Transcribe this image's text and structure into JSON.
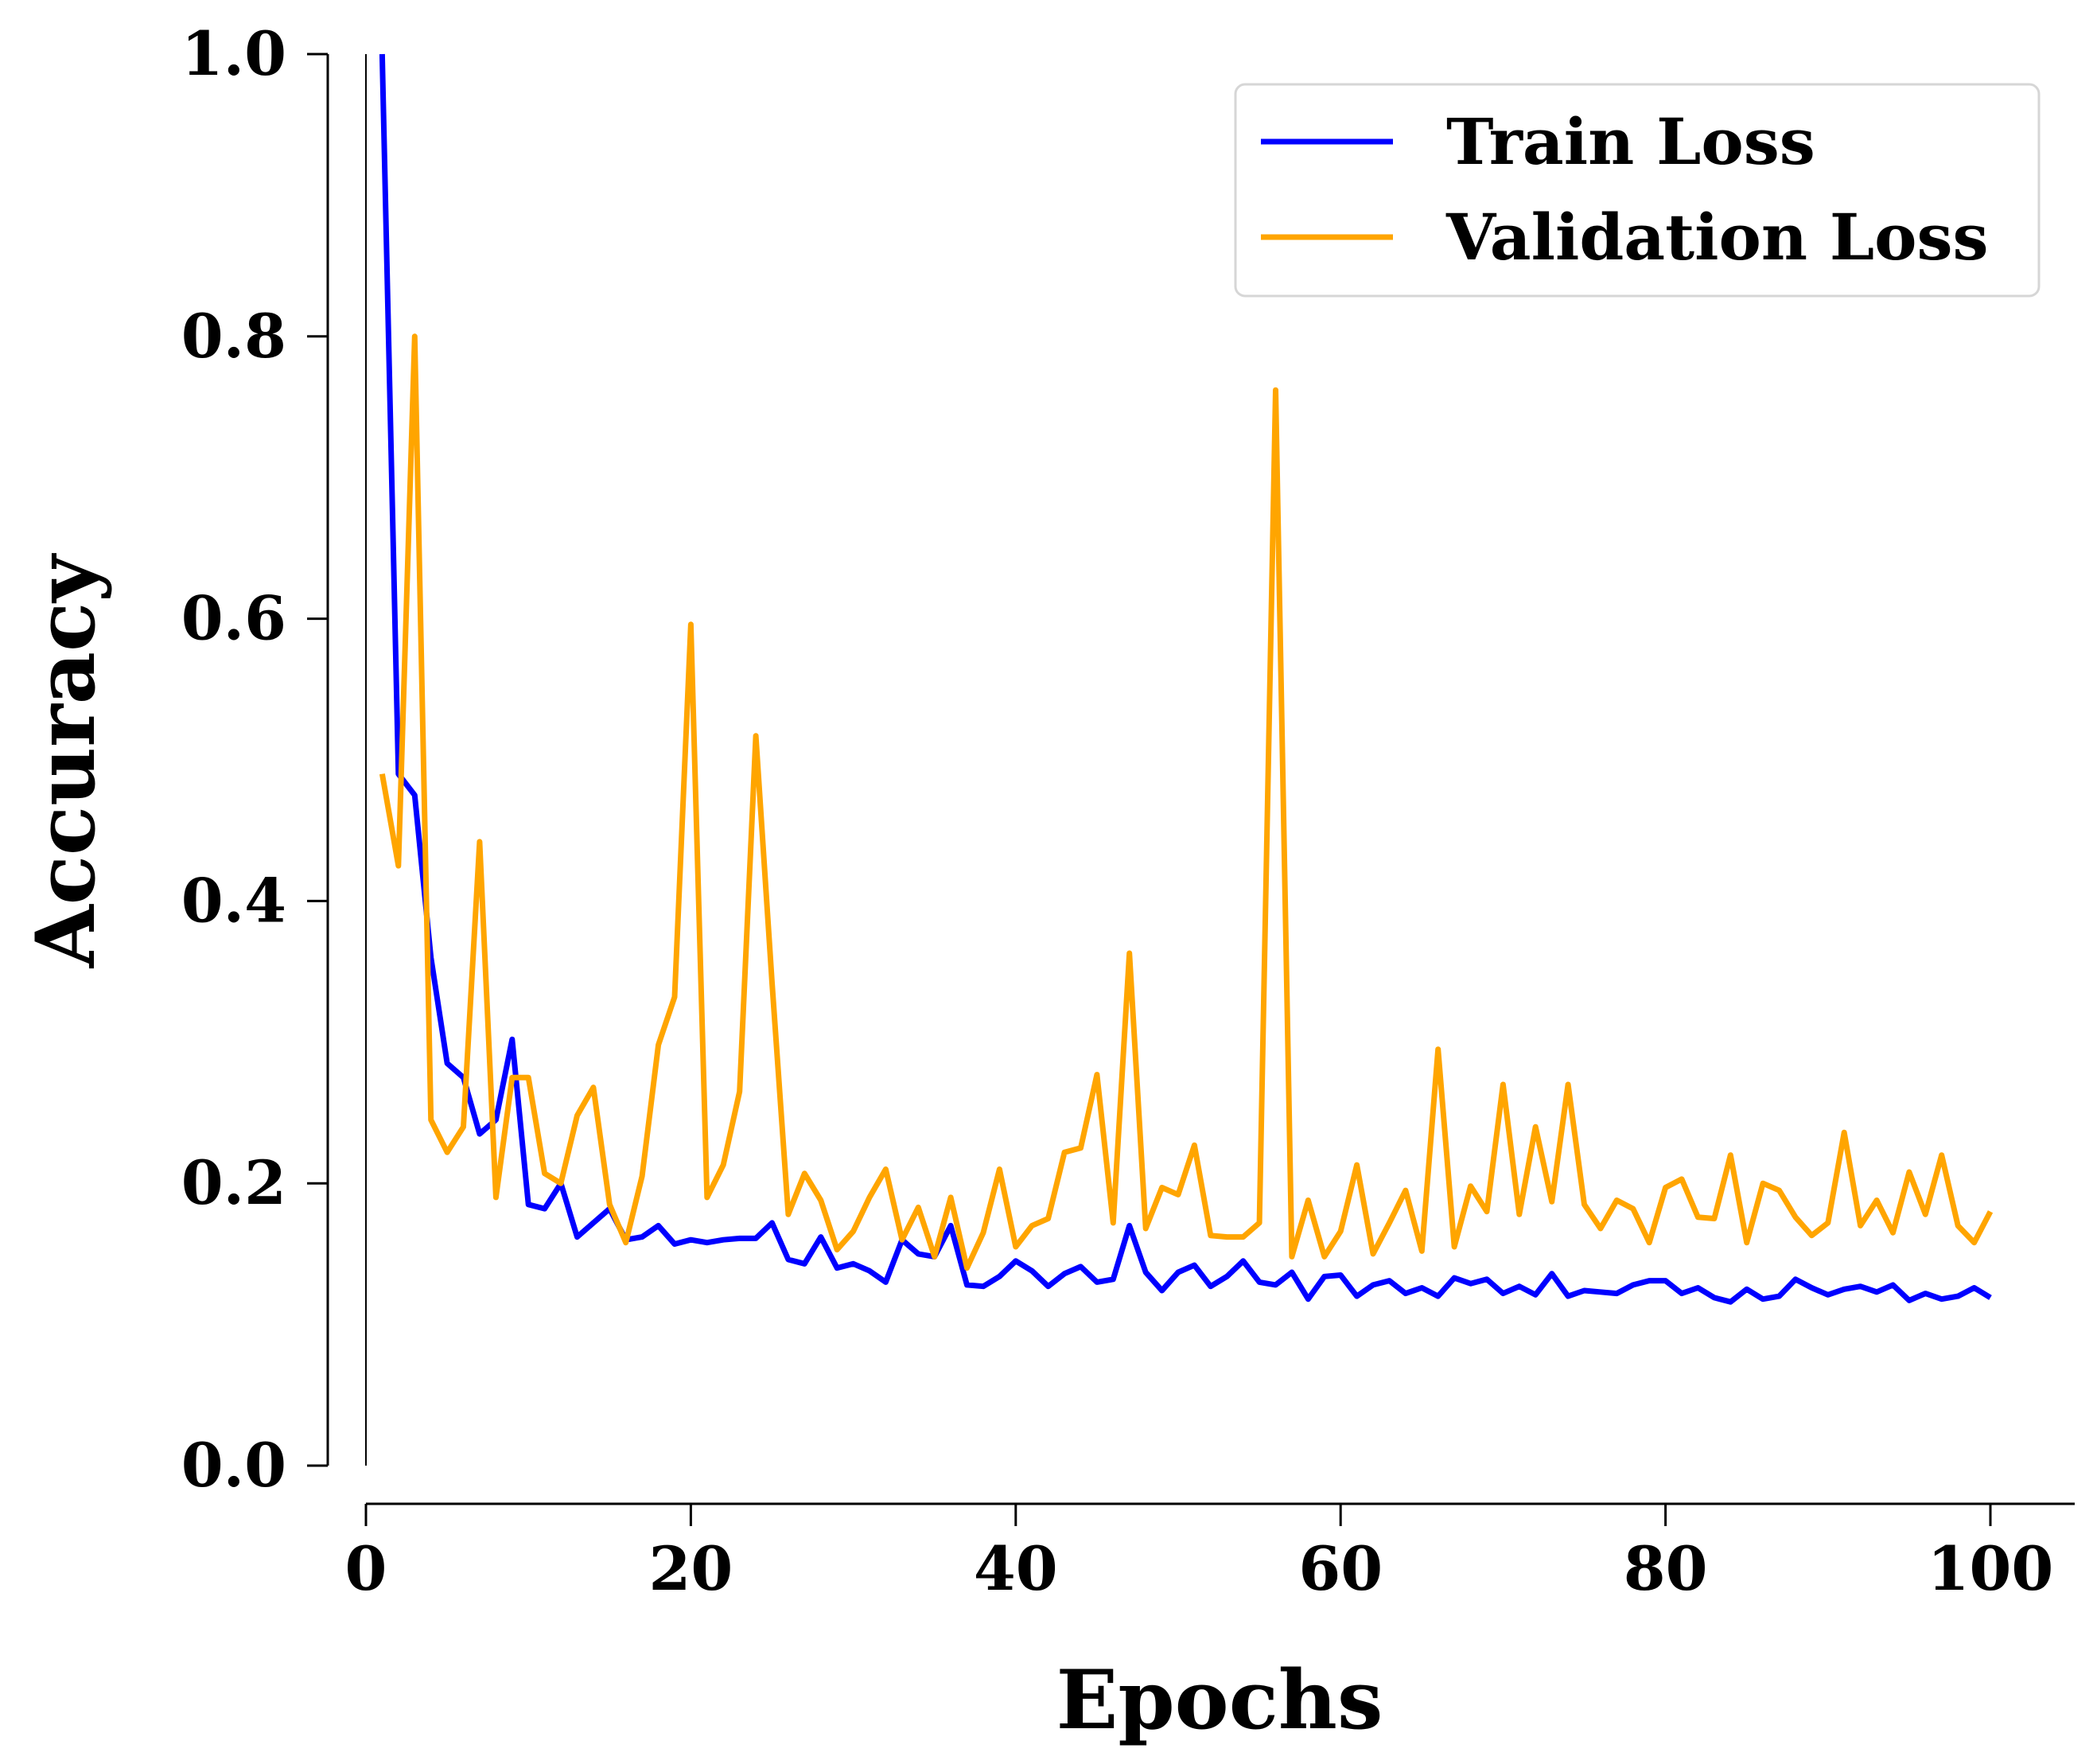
{
  "chart_data": {
    "type": "line",
    "title": "",
    "xlabel": "Epochs",
    "ylabel": "Accuracy",
    "xlim": [
      0,
      105
    ],
    "ylim": [
      0.0,
      1.0
    ],
    "xticks": [
      0,
      20,
      40,
      60,
      80,
      100
    ],
    "xtick_labels": [
      "0",
      "20",
      "40",
      "60",
      "80",
      "100"
    ],
    "yticks": [
      0.0,
      0.2,
      0.4,
      0.6,
      0.8,
      1.0
    ],
    "ytick_labels": [
      "0.0",
      "0.2",
      "0.4",
      "0.6",
      "0.8",
      "1.0"
    ],
    "grid": false,
    "legend_position": "top-right",
    "x": [
      1,
      2,
      3,
      4,
      5,
      6,
      7,
      8,
      9,
      10,
      11,
      12,
      13,
      14,
      15,
      16,
      17,
      18,
      19,
      20,
      21,
      22,
      23,
      24,
      25,
      26,
      27,
      28,
      29,
      30,
      31,
      32,
      33,
      34,
      35,
      36,
      37,
      38,
      39,
      40,
      41,
      42,
      43,
      44,
      45,
      46,
      47,
      48,
      49,
      50,
      51,
      52,
      53,
      54,
      55,
      56,
      57,
      58,
      59,
      60,
      61,
      62,
      63,
      64,
      65,
      66,
      67,
      68,
      69,
      70,
      71,
      72,
      73,
      74,
      75,
      76,
      77,
      78,
      79,
      80,
      81,
      82,
      83,
      84,
      85,
      86,
      87,
      88,
      89,
      90,
      91,
      92,
      93,
      94,
      95,
      96,
      97,
      98,
      99,
      100
    ],
    "series": [
      {
        "name": "Train Loss",
        "color": "#0000ff",
        "values": [
          1.0,
          0.49,
          0.475,
          0.36,
          0.285,
          0.275,
          0.235,
          0.245,
          0.302,
          0.185,
          0.182,
          0.2,
          0.162,
          0.172,
          0.182,
          0.16,
          0.162,
          0.17,
          0.157,
          0.16,
          0.158,
          0.16,
          0.161,
          0.161,
          0.172,
          0.146,
          0.143,
          0.162,
          0.14,
          0.143,
          0.138,
          0.13,
          0.16,
          0.15,
          0.148,
          0.17,
          0.128,
          0.127,
          0.134,
          0.145,
          0.138,
          0.127,
          0.136,
          0.141,
          0.13,
          0.132,
          0.17,
          0.137,
          0.124,
          0.137,
          0.142,
          0.127,
          0.134,
          0.145,
          0.13,
          0.128,
          0.137,
          0.118,
          0.134,
          0.135,
          0.12,
          0.128,
          0.131,
          0.122,
          0.126,
          0.12,
          0.133,
          0.129,
          0.132,
          0.122,
          0.127,
          0.121,
          0.136,
          0.12,
          0.124,
          0.123,
          0.122,
          0.128,
          0.131,
          0.131,
          0.122,
          0.126,
          0.119,
          0.116,
          0.125,
          0.118,
          0.12,
          0.132,
          0.126,
          0.121,
          0.125,
          0.127,
          0.123,
          0.128,
          0.117,
          0.122,
          0.118,
          0.12,
          0.126,
          0.119
        ]
      },
      {
        "name": "Validation Loss",
        "color": "#ffa500",
        "values": [
          0.49,
          0.425,
          0.8,
          0.245,
          0.222,
          0.24,
          0.442,
          0.19,
          0.275,
          0.275,
          0.207,
          0.2,
          0.248,
          0.268,
          0.185,
          0.158,
          0.205,
          0.298,
          0.332,
          0.596,
          0.19,
          0.213,
          0.265,
          0.517,
          0.342,
          0.178,
          0.207,
          0.188,
          0.153,
          0.166,
          0.19,
          0.21,
          0.16,
          0.183,
          0.148,
          0.19,
          0.14,
          0.165,
          0.21,
          0.155,
          0.17,
          0.175,
          0.222,
          0.225,
          0.277,
          0.172,
          0.363,
          0.168,
          0.197,
          0.192,
          0.227,
          0.163,
          0.162,
          0.162,
          0.172,
          0.762,
          0.148,
          0.188,
          0.148,
          0.166,
          0.213,
          0.15,
          0.172,
          0.195,
          0.152,
          0.295,
          0.155,
          0.198,
          0.18,
          0.27,
          0.178,
          0.24,
          0.187,
          0.27,
          0.185,
          0.168,
          0.188,
          0.182,
          0.158,
          0.197,
          0.203,
          0.176,
          0.175,
          0.22,
          0.158,
          0.2,
          0.195,
          0.176,
          0.163,
          0.172,
          0.236,
          0.17,
          0.188,
          0.165,
          0.208,
          0.178,
          0.22,
          0.17,
          0.158,
          0.18
        ]
      }
    ]
  }
}
